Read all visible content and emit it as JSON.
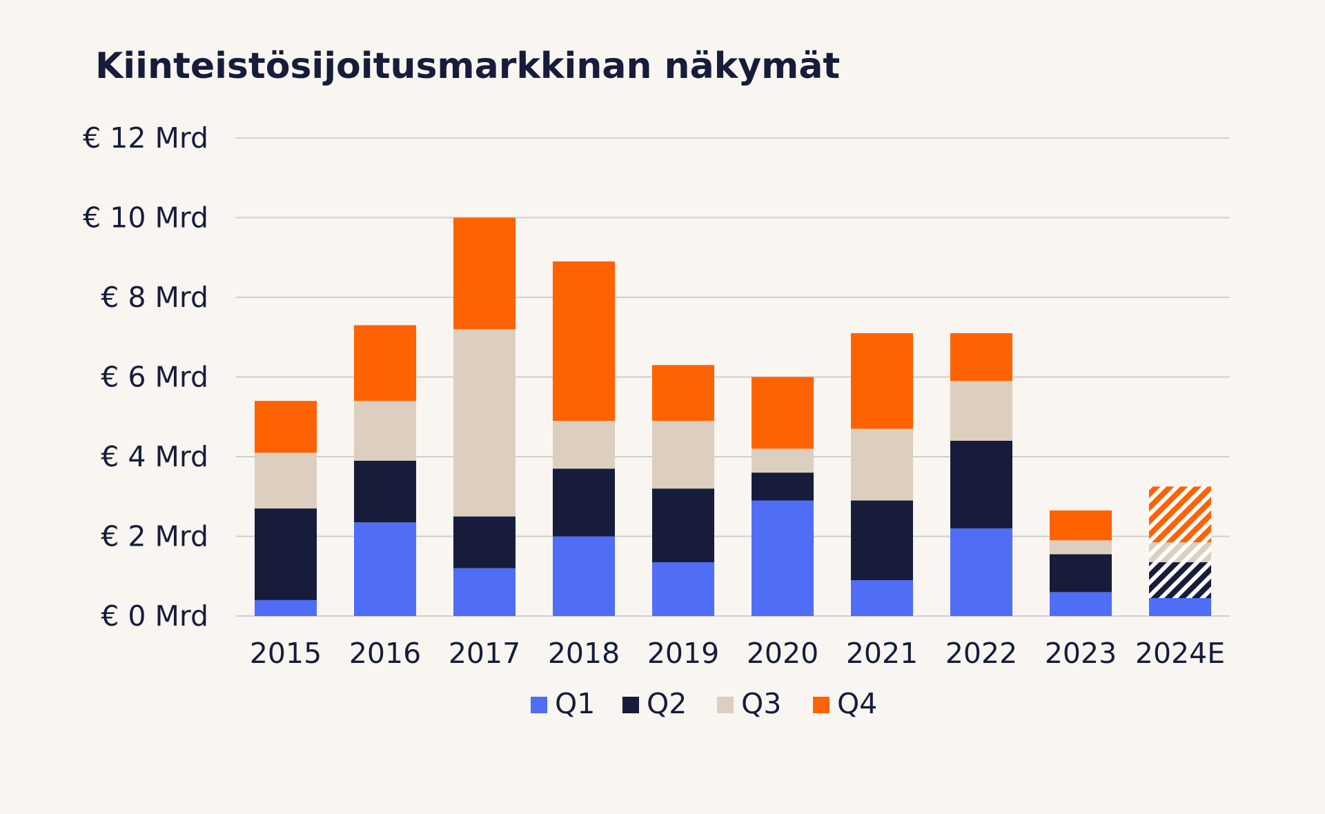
{
  "chart_data": {
    "type": "bar",
    "stacked": true,
    "title": "Kiinteistösijoitusmarkkinan näkymät",
    "xlabel": "",
    "ylabel": "",
    "ylim": [
      0,
      12
    ],
    "yticks": [
      0,
      2,
      4,
      6,
      8,
      10,
      12
    ],
    "ytick_labels": [
      "€ 0 Mrd",
      "€ 2 Mrd",
      "€ 4 Mrd",
      "€ 6 Mrd",
      "€ 8 Mrd",
      "€ 10 Mrd",
      "€ 12 Mrd"
    ],
    "grid": true,
    "legend_position": "bottom",
    "categories": [
      "2015",
      "2016",
      "2017",
      "2018",
      "2019",
      "2020",
      "2021",
      "2022",
      "2023",
      "2024E"
    ],
    "hatched_categories": [
      "2024E"
    ],
    "series": [
      {
        "name": "Q1",
        "color": "#4f6df5",
        "values": [
          0.4,
          2.35,
          1.2,
          2.0,
          1.35,
          2.9,
          0.9,
          2.2,
          0.6,
          0.45
        ]
      },
      {
        "name": "Q2",
        "color": "#161c3a",
        "values": [
          2.3,
          1.55,
          1.3,
          1.7,
          1.85,
          0.7,
          2.0,
          2.2,
          0.95,
          0.9
        ]
      },
      {
        "name": "Q3",
        "color": "#ddcfbf",
        "values": [
          1.4,
          1.5,
          4.7,
          1.2,
          1.7,
          0.6,
          1.8,
          1.5,
          0.35,
          0.5
        ]
      },
      {
        "name": "Q4",
        "color": "#ff6200",
        "values": [
          1.3,
          1.9,
          2.8,
          4.0,
          1.4,
          1.8,
          2.4,
          1.2,
          0.75,
          1.4
        ]
      }
    ]
  }
}
